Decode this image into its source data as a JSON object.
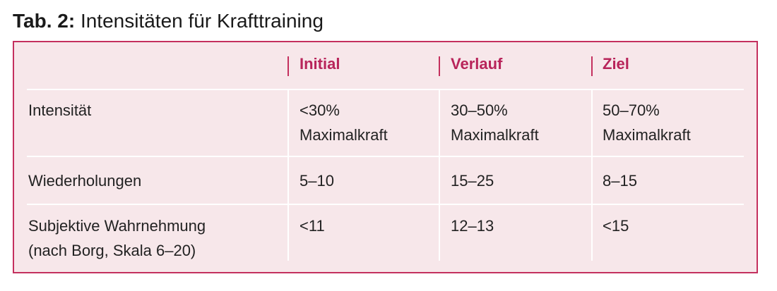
{
  "title": {
    "label": "Tab. 2:",
    "text": "Intensitäten für Krafttraining"
  },
  "table": {
    "columns": [
      "Initial",
      "Verlauf",
      "Ziel"
    ],
    "rows": [
      [
        [
          "Intensität"
        ],
        [
          "<30%",
          "Maximalkraft"
        ],
        [
          "30–50%",
          "Maximalkraft"
        ],
        [
          "50–70%",
          "Maximalkraft"
        ]
      ],
      [
        [
          "Wiederholungen"
        ],
        [
          "5–10"
        ],
        [
          "15–25"
        ],
        [
          "8–15"
        ]
      ],
      [
        [
          "Subjektive Wahrnehmung",
          "(nach Borg, Skala 6–20)"
        ],
        [
          "<11"
        ],
        [
          "12–13"
        ],
        [
          "<15"
        ]
      ]
    ]
  }
}
